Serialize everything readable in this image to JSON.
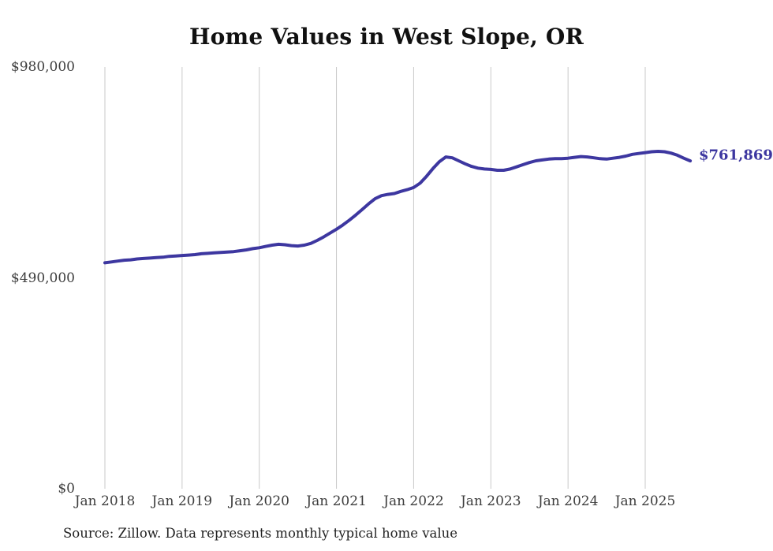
{
  "title": "Home Values in West Slope, OR",
  "source_note": "Source: Zillow. Data represents monthly typical home value",
  "end_label": "$761,869",
  "colors": {
    "line": "#3d37a0",
    "grid": "#c9c9c9",
    "title_text": "#111111",
    "axis_text": "#3d3d3d",
    "end_label_text": "#3d37a0",
    "background": "#ffffff"
  },
  "y_axis": {
    "ticks": [
      "$980,000",
      "$490,000",
      "$0"
    ],
    "min": 0,
    "max": 980000
  },
  "x_axis": {
    "ticks": [
      "Jan 2018",
      "Jan 2019",
      "Jan 2020",
      "Jan 2021",
      "Jan 2022",
      "Jan 2023",
      "Jan 2024",
      "Jan 2025"
    ]
  },
  "chart_data": {
    "type": "line",
    "title": "Home Values in West Slope, OR",
    "xlabel": "",
    "ylabel": "",
    "ylim": [
      0,
      980000
    ],
    "y_tick_labels": [
      "$0",
      "$490,000",
      "$980,000"
    ],
    "x_tick_labels": [
      "Jan 2018",
      "Jan 2019",
      "Jan 2020",
      "Jan 2021",
      "Jan 2022",
      "Jan 2023",
      "Jan 2024",
      "Jan 2025"
    ],
    "grid": "vertical-only",
    "legend": "none",
    "annotation": "$761,869",
    "series": [
      {
        "name": "Monthly typical home value",
        "start_month": "2018-01",
        "end_month": "2025-08",
        "interval": "monthly",
        "values": [
          525000,
          527000,
          529000,
          531000,
          532000,
          534000,
          535000,
          536000,
          537000,
          538000,
          540000,
          541000,
          542000,
          543000,
          544000,
          546000,
          547000,
          548000,
          549000,
          550000,
          551000,
          553000,
          555000,
          558000,
          560000,
          563000,
          566000,
          568000,
          567000,
          565000,
          564000,
          566000,
          570000,
          577000,
          585000,
          594000,
          603000,
          613000,
          624000,
          636000,
          649000,
          662000,
          674000,
          681000,
          684000,
          686000,
          691000,
          695000,
          700000,
          710000,
          726000,
          744000,
          760000,
          771000,
          769000,
          762000,
          755000,
          749000,
          745000,
          743000,
          742000,
          740000,
          740000,
          743000,
          748000,
          753000,
          758000,
          762000,
          764000,
          766000,
          767000,
          767000,
          768000,
          770000,
          772000,
          771000,
          769000,
          767000,
          766000,
          768000,
          770000,
          773000,
          777000,
          779000,
          781000,
          783000,
          784000,
          783000,
          780000,
          775000,
          768000,
          761869
        ],
        "final_value": 761869
      }
    ]
  }
}
